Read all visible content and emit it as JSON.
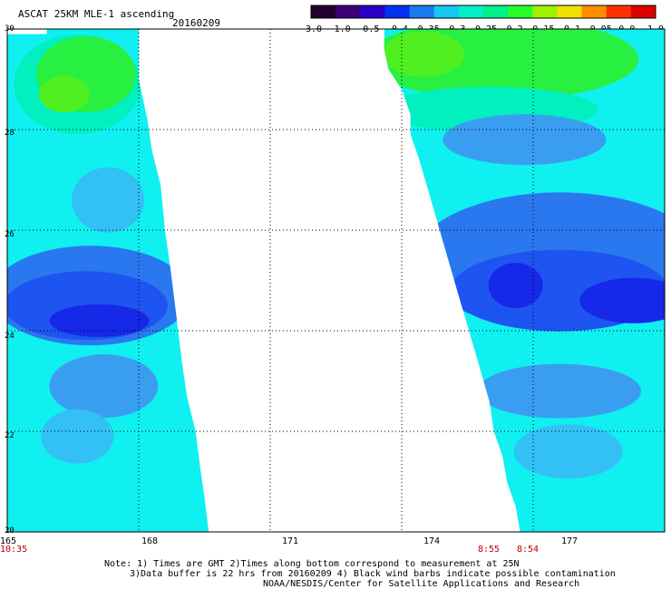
{
  "header": {
    "title": "ASCAT 25KM MLE-1 ascending",
    "date": "20160209"
  },
  "colorbar": {
    "ticks": [
      "-3.0",
      "-1.0",
      "-0.5",
      "-0.4",
      "-0.35",
      "-0.3",
      "-0.25",
      "-0.2",
      "-0.15",
      "-0.1",
      "-0.05",
      "0.0",
      "1.0"
    ],
    "colors": [
      "#230030",
      "#3a0078",
      "#2800c8",
      "#0030f0",
      "#1a78f0",
      "#14c8f0",
      "#00f0c8",
      "#00f08a",
      "#28ff28",
      "#a0f000",
      "#f0e000",
      "#ff8c00",
      "#ff3000",
      "#e00000"
    ]
  },
  "map": {
    "lat_labels": [
      "30",
      "28",
      "26",
      "24",
      "22",
      "20"
    ],
    "lon_labels": [
      "165",
      "168",
      "171",
      "174",
      "177"
    ],
    "colors": {
      "dark_blue": "#1628e8",
      "blue": "#1e54f0",
      "mid_blue": "#2a78f0",
      "light_blue": "#3a9ef0",
      "cyan_blue": "#32c0f5",
      "cyan": "#10f0f0",
      "aqua": "#00f0c0",
      "green": "#28f040",
      "lime": "#50f020",
      "white": "#ffffff"
    }
  },
  "chart_data": {
    "type": "heatmap",
    "title": "ASCAT 25KM MLE-1 ascending",
    "subtitle": "20160209",
    "xlabel": "",
    "ylabel": "",
    "xlim": [
      165,
      180
    ],
    "ylim": [
      20,
      30
    ],
    "x_ticks": [
      165,
      168,
      171,
      174,
      177
    ],
    "y_ticks": [
      20,
      22,
      24,
      26,
      28,
      30
    ],
    "color_scale": [
      "-3.0",
      "-1.0",
      "-0.5",
      "-0.4",
      "-0.35",
      "-0.3",
      "-0.25",
      "-0.2",
      "-0.15",
      "-0.1",
      "-0.05",
      "0.0",
      "1.0"
    ],
    "swaths": [
      {
        "pass_times": [
          "10:35"
        ],
        "regions": [
          {
            "lat_range": [
              28.4,
              30
            ],
            "lon_range": [
              165.7,
              168
            ],
            "value_band": "-0.2 to -0.15"
          },
          {
            "lat_range": [
              25.5,
              28.4
            ],
            "lon_range": [
              165,
              168.5
            ],
            "value_band": "-0.3 to -0.25"
          },
          {
            "lat_range": [
              23.5,
              25.5
            ],
            "lon_range": [
              165,
              168.8
            ],
            "value_band": "-0.4 to -0.35"
          },
          {
            "lat_range": [
              20,
              23.5
            ],
            "lon_range": [
              165,
              169.5
            ],
            "value_band": "-0.3 to -0.25"
          }
        ]
      },
      {
        "pass_times": [
          "8:55",
          "8:54"
        ],
        "regions": [
          {
            "lat_range": [
              28.6,
              30
            ],
            "lon_range": [
              173.6,
              180
            ],
            "value_band": "-0.2 to -0.15"
          },
          {
            "lat_range": [
              26,
              28.6
            ],
            "lon_range": [
              174.2,
              180
            ],
            "value_band": "-0.3 to -0.25"
          },
          {
            "lat_range": [
              23.5,
              26
            ],
            "lon_range": [
              175,
              180
            ],
            "value_band": "-0.4 to -0.35"
          },
          {
            "lat_range": [
              20,
              23.5
            ],
            "lon_range": [
              176,
              180
            ],
            "value_band": "-0.3 to -0.25"
          }
        ]
      }
    ]
  },
  "times": {
    "left": "10:35",
    "right_a": "8:55",
    "right_b": "8:54"
  },
  "notes": {
    "line1": "Note: 1) Times are GMT 2)Times along bottom correspond to measurement at 25N",
    "line2": "3)Data buffer is 22 hrs from 20160209 4) Black wind barbs indicate possible contamination",
    "line3": "NOAA/NESDIS/Center for Satellite Applications and Research"
  }
}
